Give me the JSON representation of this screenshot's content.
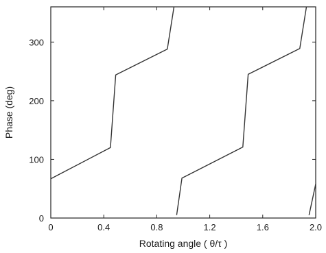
{
  "chart_data": {
    "type": "line",
    "xlabel": "Rotating angle ( θ/τ )",
    "ylabel": "Phase (deg)",
    "xlim": [
      0,
      2.0
    ],
    "ylim": [
      0,
      360
    ],
    "x_ticks": [
      0,
      0.4,
      0.8,
      1.2,
      1.6,
      2.0
    ],
    "x_tick_labels": [
      "0",
      "0.4",
      "0.8",
      "1.2",
      "1.6",
      "2.0"
    ],
    "y_ticks": [
      0,
      100,
      200,
      300
    ],
    "y_tick_labels": [
      "0",
      "100",
      "200",
      "300"
    ],
    "grid": false,
    "line_color": "#333333",
    "series": [
      {
        "segments": [
          [
            [
              0.0,
              67
            ],
            [
              0.45,
              120
            ],
            [
              0.49,
              244
            ],
            [
              0.88,
              288
            ],
            [
              0.93,
              360
            ]
          ],
          [
            [
              0.95,
              5
            ],
            [
              0.99,
              68
            ],
            [
              1.45,
              121
            ],
            [
              1.49,
              245
            ],
            [
              1.88,
              289
            ],
            [
              1.93,
              360
            ]
          ],
          [
            [
              1.95,
              5
            ],
            [
              2.0,
              58
            ]
          ]
        ]
      }
    ]
  }
}
